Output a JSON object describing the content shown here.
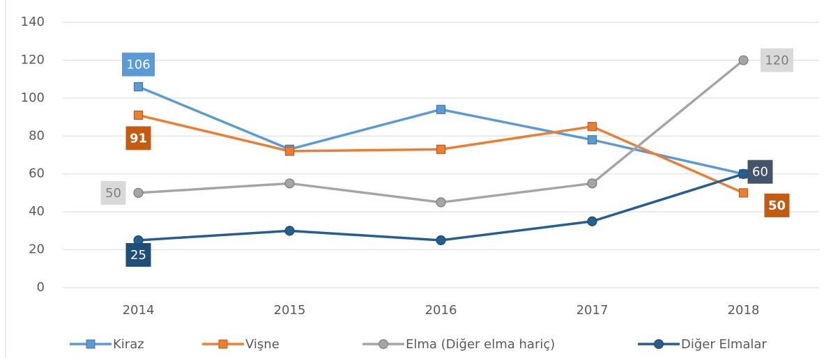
{
  "chart_data": {
    "type": "line",
    "categories": [
      "2014",
      "2015",
      "2016",
      "2017",
      "2018"
    ],
    "series": [
      {
        "name": "Kiraz",
        "color": "#5b9bd5",
        "marker": "square",
        "values": [
          106,
          73,
          94,
          78,
          60
        ],
        "labeled_points": [
          0
        ]
      },
      {
        "name": "Vişne",
        "color": "#ed7d31",
        "marker": "square",
        "values": [
          91,
          72,
          73,
          85,
          50
        ],
        "labeled_points": [
          0,
          4
        ]
      },
      {
        "name": "Elma (Diğer elma hariç)",
        "color": "#a5a5a5",
        "marker": "circle",
        "values": [
          50,
          55,
          45,
          55,
          120
        ],
        "labeled_points": [
          0,
          4
        ]
      },
      {
        "name": "Diğer Elmalar",
        "color": "#255e91",
        "marker": "circle",
        "values": [
          25,
          30,
          25,
          35,
          60
        ],
        "labeled_points": [
          0,
          4
        ]
      }
    ],
    "ylim": [
      0,
      140
    ],
    "yticks": [
      0,
      20,
      40,
      60,
      80,
      100,
      120,
      140
    ],
    "grid": true,
    "legend": "bottom"
  }
}
